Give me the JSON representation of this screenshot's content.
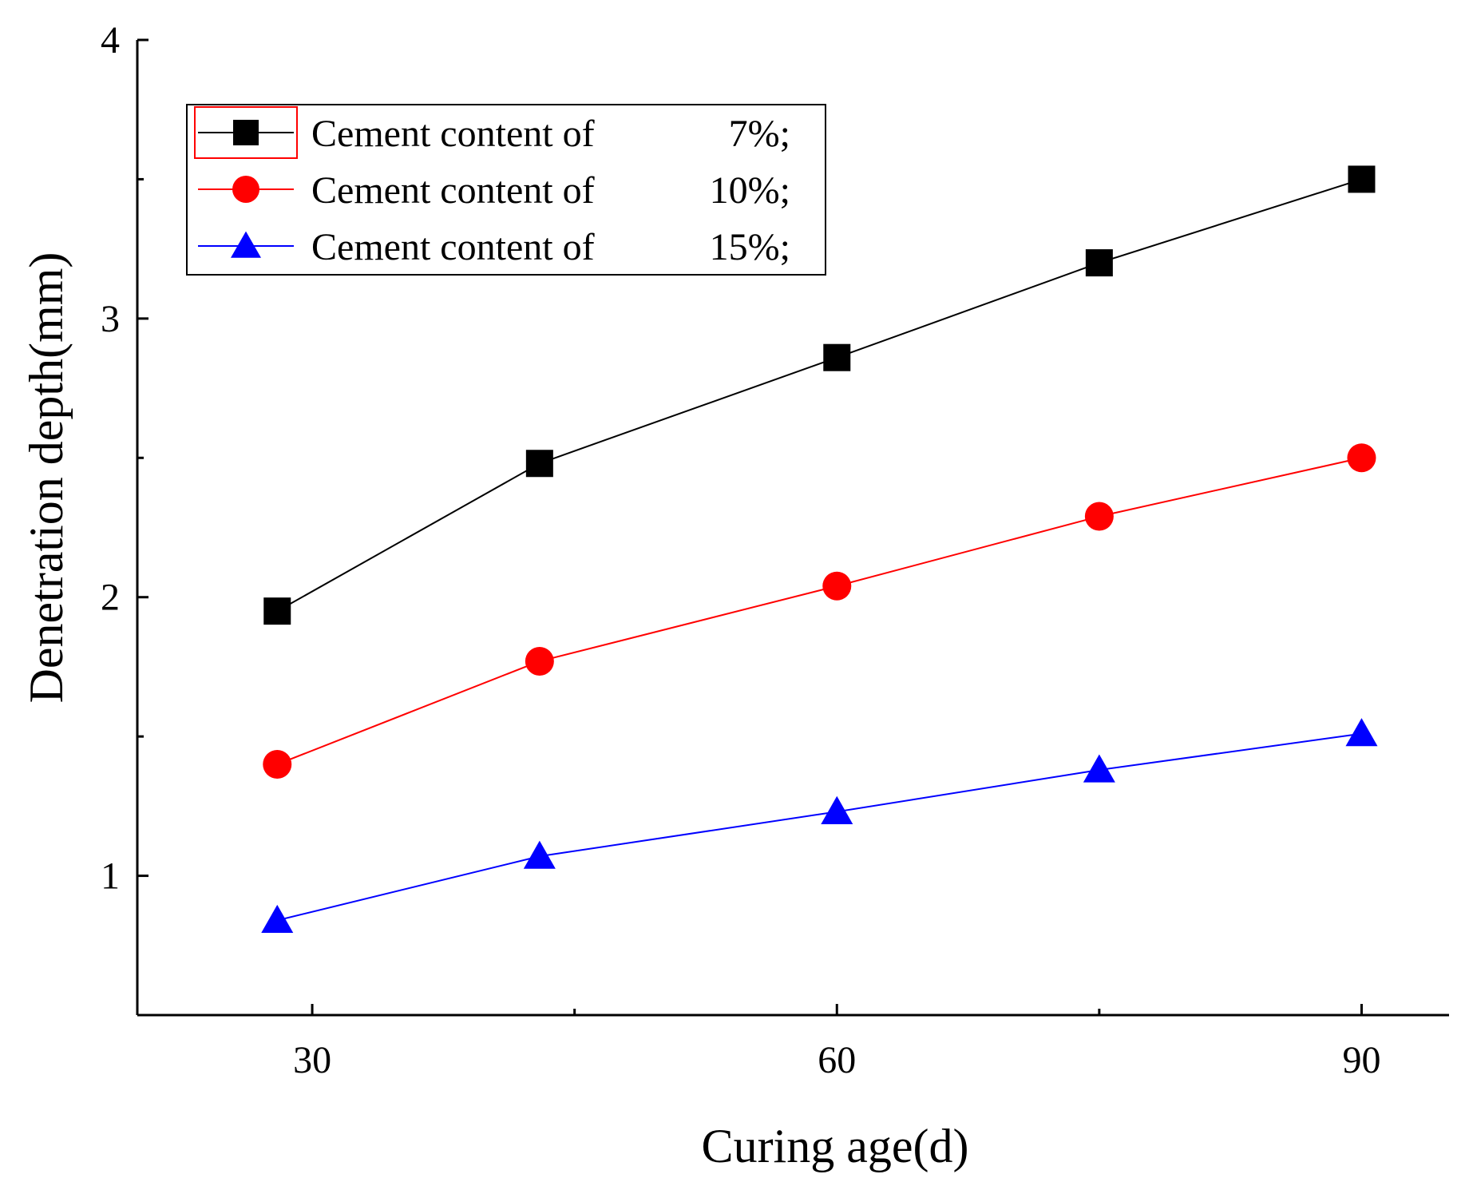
{
  "chart_data": {
    "type": "line",
    "title": "",
    "xlabel": "Curing age(d)",
    "ylabel": "Denetration depth(mm)",
    "xlim": [
      20,
      95
    ],
    "ylim": [
      0.5,
      4
    ],
    "xticks": [
      30,
      60,
      90
    ],
    "yticks": [
      1,
      2,
      3,
      4
    ],
    "grid": false,
    "legend_position": "top-left",
    "series": [
      {
        "name": "Cement content of",
        "pct": "7%;",
        "color": "#000000",
        "marker": "square",
        "x": [
          28,
          43,
          60,
          75,
          90
        ],
        "y": [
          1.95,
          2.48,
          2.86,
          3.2,
          3.5
        ]
      },
      {
        "name": "Cement content of",
        "pct": "10%;",
        "color": "#ff0000",
        "marker": "circle",
        "x": [
          28,
          43,
          60,
          75,
          90
        ],
        "y": [
          1.4,
          1.77,
          2.04,
          2.29,
          2.5
        ]
      },
      {
        "name": "Cement content of",
        "pct": "15%;",
        "color": "#0000ff",
        "marker": "triangle",
        "x": [
          28,
          43,
          60,
          75,
          90
        ],
        "y": [
          0.84,
          1.07,
          1.23,
          1.38,
          1.51
        ]
      }
    ]
  }
}
